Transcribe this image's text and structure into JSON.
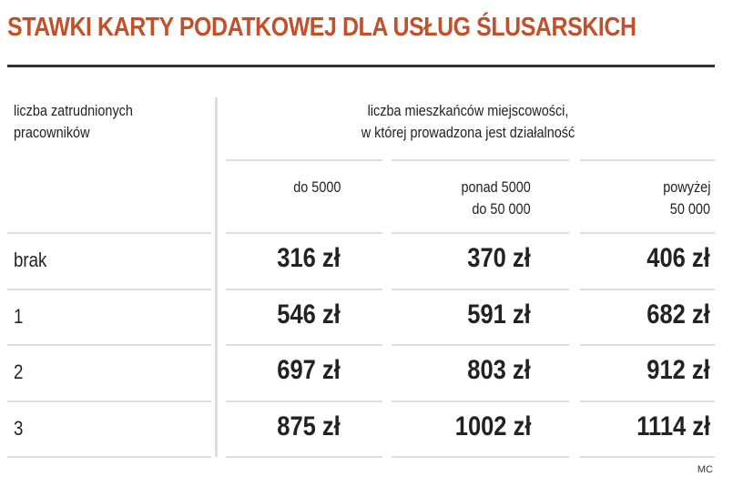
{
  "title": "STAWKI KARTY PODATKOWEJ DLA USŁUG ŚLUSARSKICH",
  "table": {
    "row_header": [
      "liczba zatrudnionych",
      "pracowników"
    ],
    "group_header": [
      "liczba mieszkańców miejscowości,",
      "w której prowadzona jest działalność"
    ],
    "columns": [
      [
        "do 5000"
      ],
      [
        "ponad 5000",
        "do 50 000"
      ],
      [
        "powyżej",
        "50 000"
      ]
    ],
    "rows": [
      {
        "label": "brak",
        "values": [
          "316 zł",
          "370 zł",
          "406 zł"
        ]
      },
      {
        "label": "1",
        "values": [
          "546 zł",
          "591 zł",
          "682 zł"
        ]
      },
      {
        "label": "2",
        "values": [
          "697 zł",
          "803 zł",
          "912 zł"
        ]
      },
      {
        "label": "3",
        "values": [
          "875 zł",
          "1002 zł",
          "1114 zł"
        ]
      }
    ]
  },
  "source": "MC",
  "colors": {
    "title": "#c2502a",
    "rule": "#333333",
    "grid": "#dddddd"
  }
}
